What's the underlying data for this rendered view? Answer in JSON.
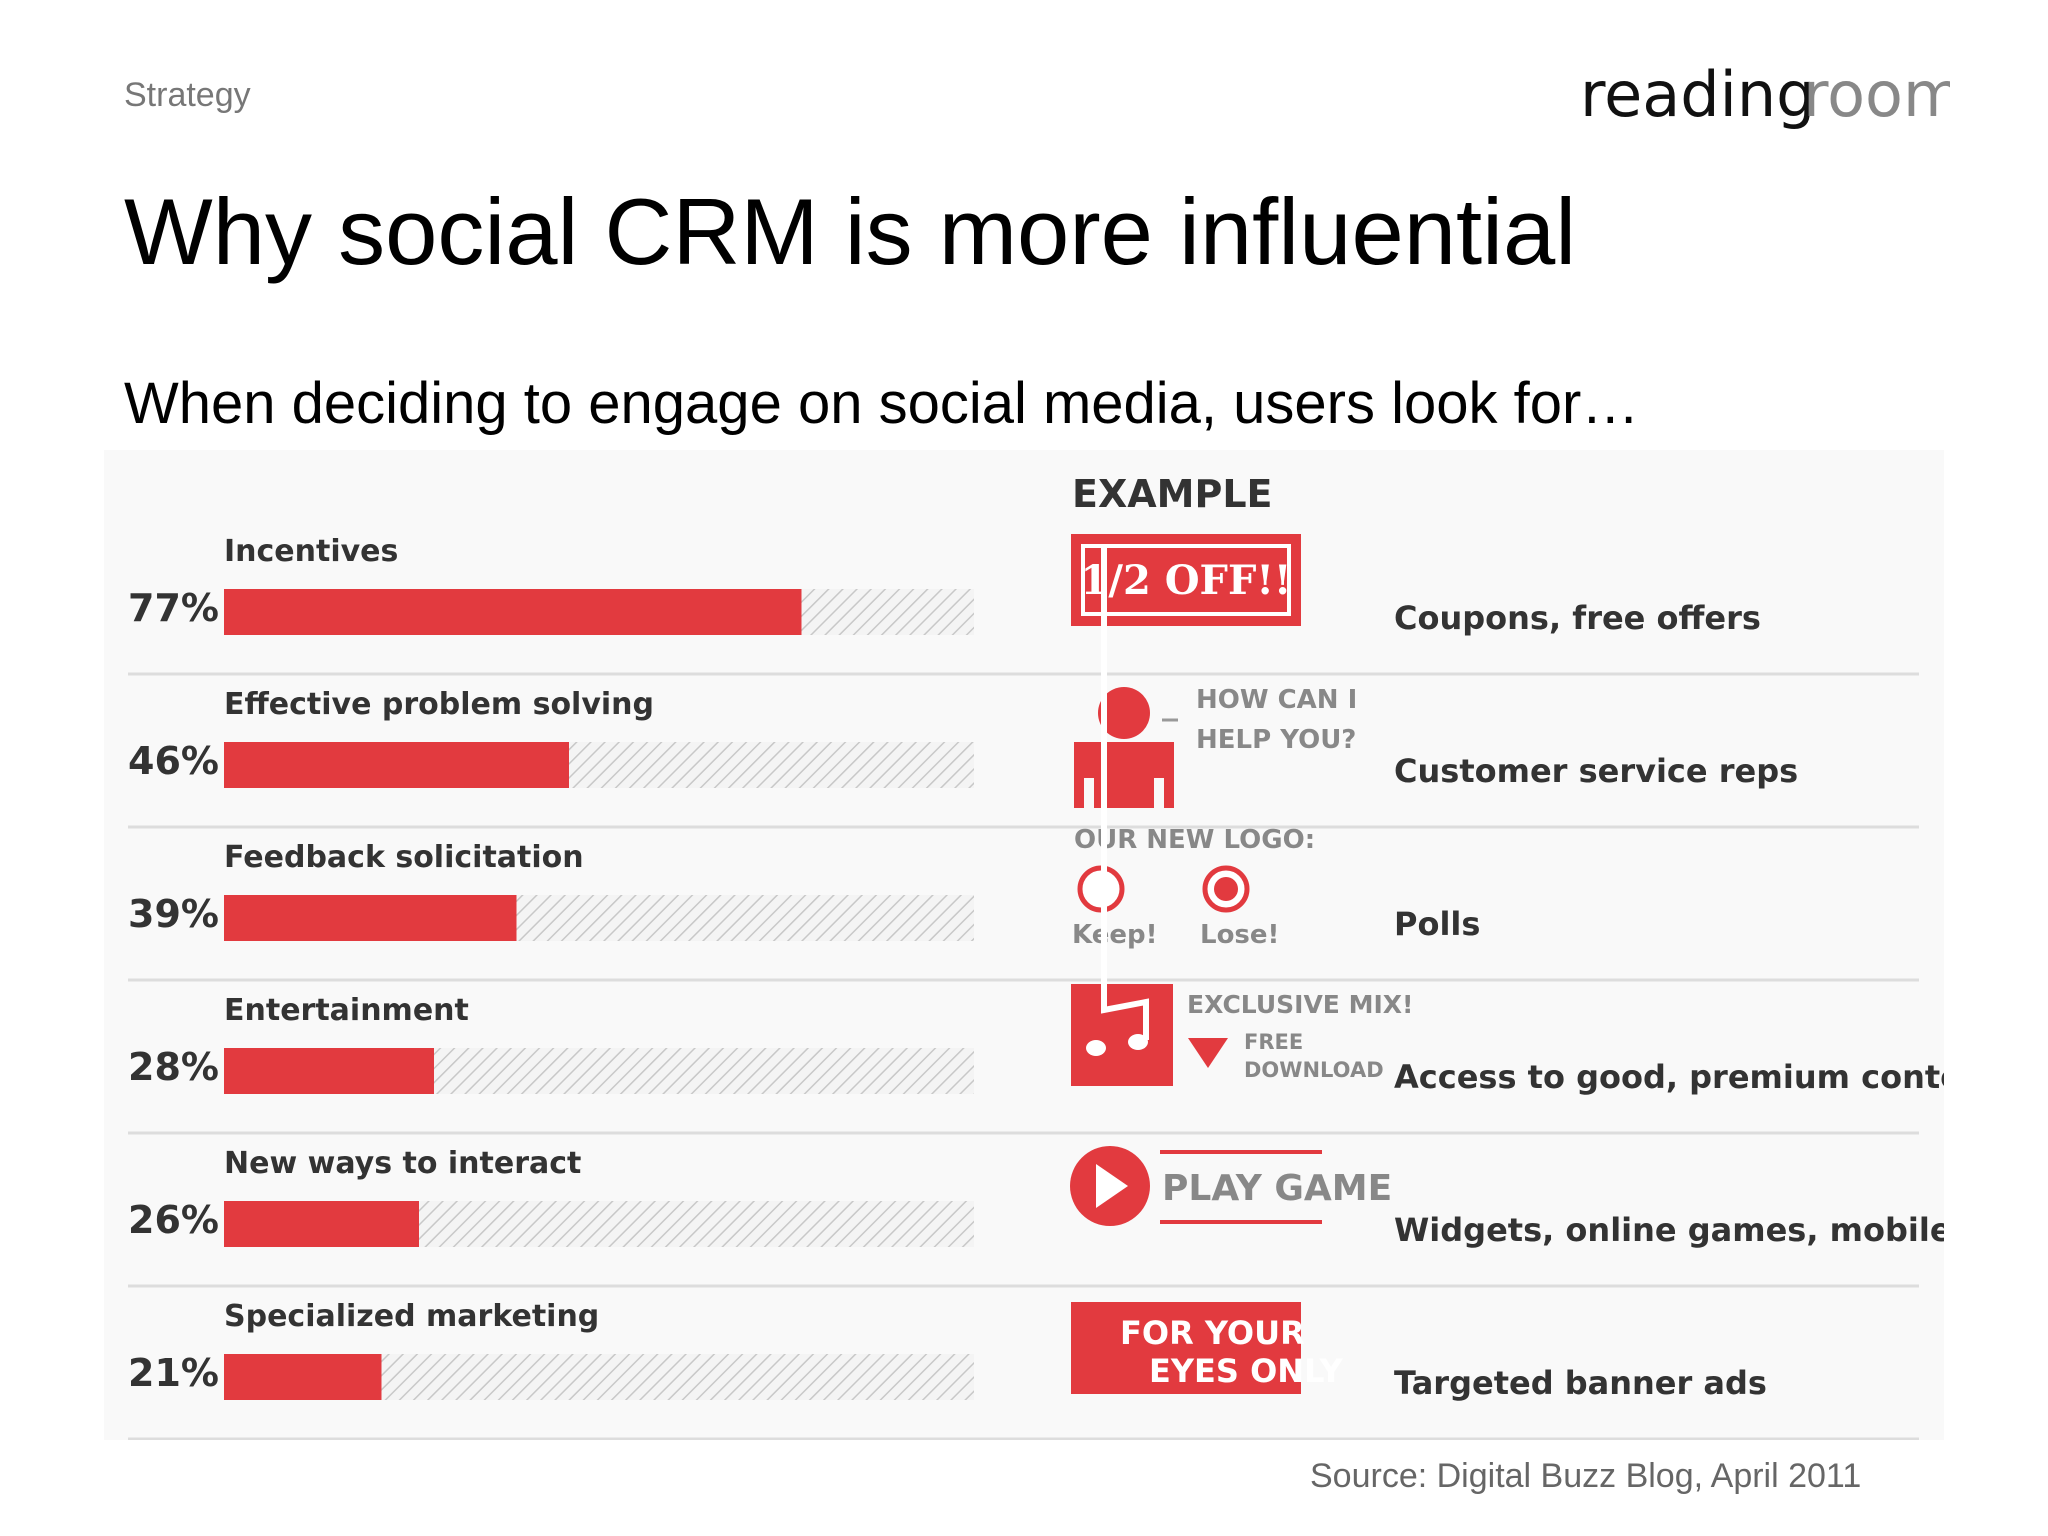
{
  "slide": {
    "category": "Strategy",
    "logo_text_1": "reading",
    "logo_text_2": "room",
    "title": "Why social CRM is more influential",
    "subtitle": "When deciding to engage on social media, users look for…",
    "source": "Source: Digital Buzz Blog, April 2011"
  },
  "colors": {
    "accent": "#e23a3f",
    "bar_track": "#c8c8c8",
    "divider": "#dddddd",
    "text_dark": "#333333",
    "text_grey": "#777777"
  },
  "chart_data": {
    "type": "bar",
    "orientation": "horizontal",
    "value_unit": "%",
    "xlim": [
      0,
      100
    ],
    "example_header": "EXAMPLE",
    "categories": [
      "Incentives",
      "Effective problem solving",
      "Feedback solicitation",
      "Entertainment",
      "New ways to interact",
      "Specialized marketing"
    ],
    "values": [
      77,
      46,
      39,
      28,
      26,
      21
    ],
    "value_labels": [
      "77%",
      "46%",
      "39%",
      "28%",
      "26%",
      "21%"
    ],
    "example_descriptions": [
      "Coupons, free offers",
      "Customer service reps",
      "Polls",
      "Access to good, premium content",
      "Widgets, online games, mobile apps",
      "Targeted banner ads"
    ],
    "example_graphics": [
      {
        "icon": "coupon-tag-icon",
        "text": "1/2 OFF!!"
      },
      {
        "icon": "person-icon",
        "lines": [
          "HOW CAN I",
          "HELP YOU?"
        ]
      },
      {
        "icon": "poll-icon",
        "heading": "OUR NEW LOGO:",
        "options": [
          "Keep!",
          "Lose!"
        ]
      },
      {
        "icon": "music-note-icon",
        "lines": [
          "EXCLUSIVE MIX!",
          "FREE",
          "DOWNLOAD"
        ]
      },
      {
        "icon": "play-icon",
        "text": "PLAY GAME"
      },
      {
        "icon": "banner-ad-icon",
        "lines": [
          "FOR YOUR",
          "EYES ONLY"
        ]
      }
    ]
  }
}
